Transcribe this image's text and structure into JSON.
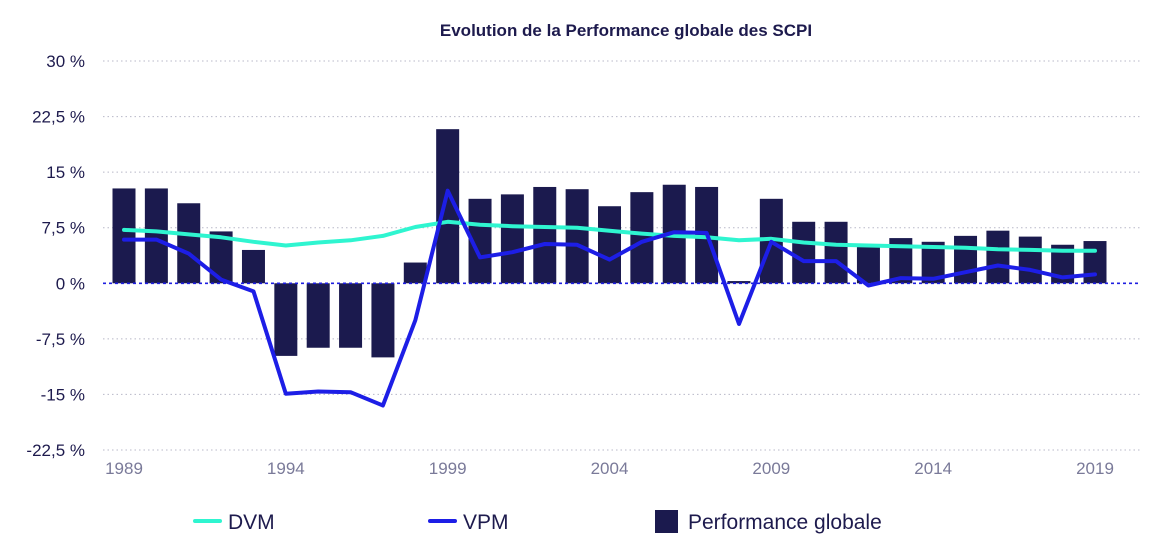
{
  "chart_data": {
    "type": "bar",
    "title": "Evolution de la Performance globale des SCPI",
    "xlabel": "",
    "ylabel": "",
    "ylim": [
      -22.5,
      30
    ],
    "yticks": [
      30,
      22.5,
      15,
      7.5,
      0,
      -7.5,
      -15,
      -22.5
    ],
    "ytick_labels": [
      "30 %",
      "22,5 %",
      "15 %",
      "7,5 %",
      "0 %",
      "-7,5 %",
      "-15 %",
      "-22,5 %"
    ],
    "xtick_labels": [
      "1989",
      "1994",
      "1999",
      "2004",
      "2009",
      "2014",
      "2019"
    ],
    "categories": [
      "1989",
      "1990",
      "1991",
      "1992",
      "1993",
      "1994",
      "1995",
      "1996",
      "1997",
      "1998",
      "1999",
      "2000",
      "2001",
      "2002",
      "2003",
      "2004",
      "2005",
      "2006",
      "2007",
      "2008",
      "2009",
      "2010",
      "2011",
      "2012",
      "2013",
      "2014",
      "2015",
      "2016",
      "2017",
      "2018",
      "2019"
    ],
    "grid": true,
    "legend_position": "bottom",
    "series": [
      {
        "name": "Performance globale",
        "kind": "bar",
        "color": "#1b1a4e",
        "values": [
          12.8,
          12.8,
          10.8,
          7.0,
          4.5,
          -9.8,
          -8.7,
          -8.7,
          -10.0,
          2.8,
          20.8,
          11.4,
          12.0,
          13.0,
          12.7,
          10.4,
          12.3,
          13.3,
          13.0,
          0.3,
          11.4,
          8.3,
          8.3,
          5.0,
          6.1,
          5.6,
          6.4,
          7.1,
          6.3,
          5.2,
          5.7
        ]
      },
      {
        "name": "DVM",
        "kind": "line",
        "color": "#2ff5d0",
        "values": [
          7.2,
          7.0,
          6.6,
          6.2,
          5.6,
          5.1,
          5.5,
          5.8,
          6.4,
          7.6,
          8.3,
          7.9,
          7.7,
          7.6,
          7.5,
          7.1,
          6.7,
          6.4,
          6.2,
          5.8,
          6.0,
          5.5,
          5.2,
          5.1,
          5.0,
          4.9,
          4.8,
          4.6,
          4.5,
          4.4,
          4.4
        ]
      },
      {
        "name": "VPM",
        "kind": "line",
        "color": "#1d1ee6",
        "values": [
          5.9,
          5.9,
          4.0,
          0.5,
          -1.1,
          -14.9,
          -14.6,
          -14.7,
          -16.5,
          -5.0,
          12.5,
          3.5,
          4.2,
          5.3,
          5.2,
          3.2,
          5.6,
          6.9,
          6.8,
          -5.5,
          5.6,
          3.0,
          3.0,
          -0.3,
          0.7,
          0.6,
          1.5,
          2.4,
          1.8,
          0.8,
          1.2
        ]
      }
    ],
    "legend": [
      "DVM",
      "VPM",
      "Performance globale"
    ]
  }
}
